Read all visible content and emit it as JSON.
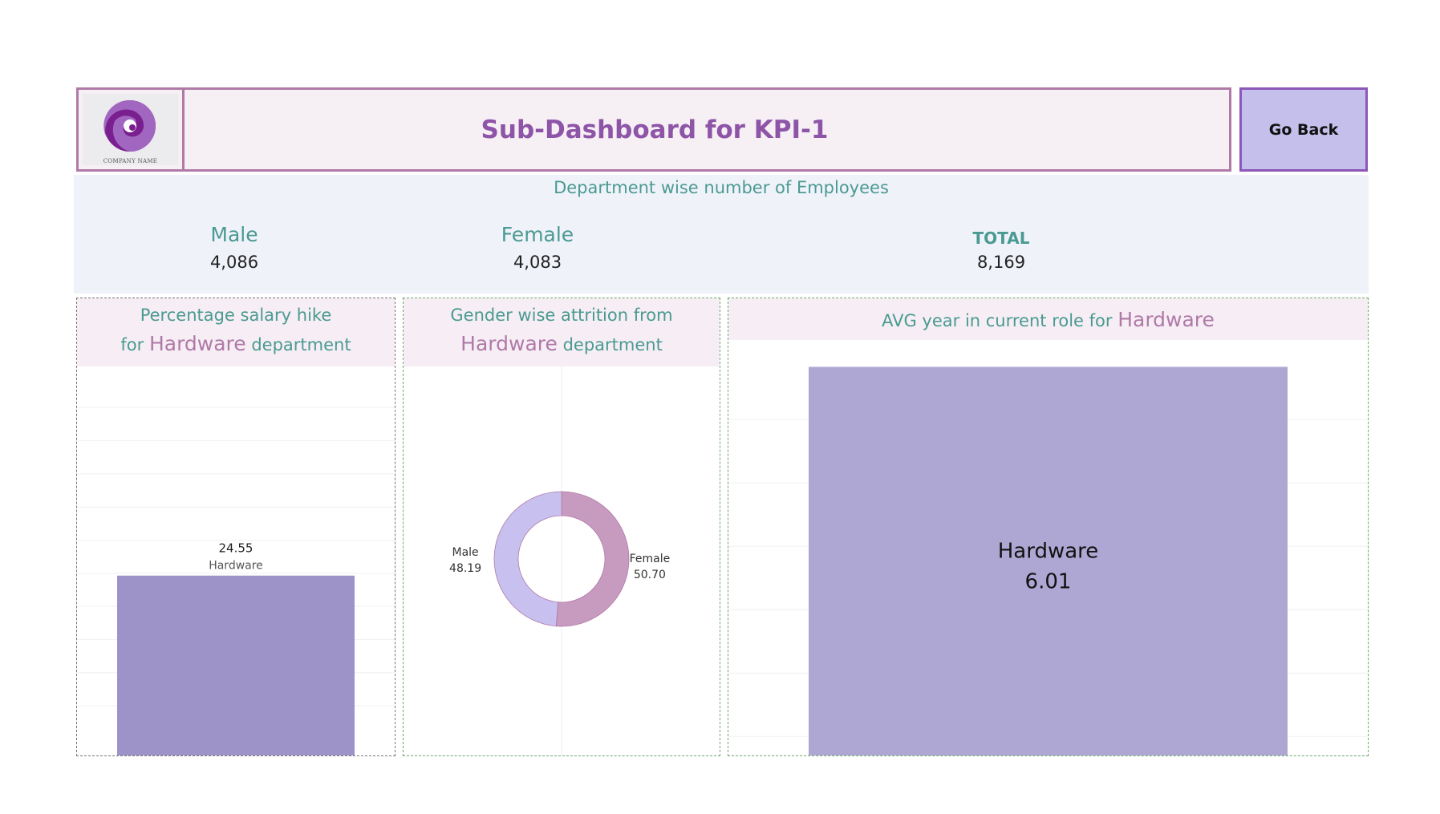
{
  "header": {
    "title": "Sub-Dashboard for KPI-1",
    "logo_caption": "COMPANY NAME",
    "go_back_label": "Go Back"
  },
  "kpi": {
    "title": "Department wise number of Employees",
    "male_label": "Male",
    "male_value": "4,086",
    "female_label": "Female",
    "female_value": "4,083",
    "total_label": "TOTAL",
    "total_value": "8,169"
  },
  "panels": {
    "salary": {
      "title_line1": "Percentage salary hike",
      "title_for": "for",
      "title_highlight": "Hardware",
      "title_end": "department"
    },
    "attrition": {
      "title_line1": "Gender wise attrition from",
      "title_highlight": "Hardware",
      "title_end": "department"
    },
    "avg_year": {
      "title_start": "AVG year in current role for",
      "title_highlight": "Hardware"
    }
  },
  "colors": {
    "bar_salary": "#9d93c8",
    "bar_avg": "#aea7d3",
    "donut_male": "#c8c0ee",
    "donut_female": "#c79ac0",
    "accent_text": "#4a9a92",
    "highlight_text": "#b07aa8"
  },
  "chart_data": [
    {
      "type": "bar",
      "categories": [
        "Hardware"
      ],
      "values": [
        24.55
      ],
      "value_labels": [
        "24.55"
      ],
      "title": "Percentage salary hike for Hardware department",
      "ylim": [
        0,
        52
      ]
    },
    {
      "type": "pie",
      "donut": true,
      "categories": [
        "Male",
        "Female"
      ],
      "values": [
        48.19,
        50.7
      ],
      "value_labels": [
        "48.19",
        "50.70"
      ],
      "title": "Gender wise attrition from Hardware department"
    },
    {
      "type": "bar",
      "categories": [
        "Hardware"
      ],
      "values": [
        6.01
      ],
      "value_labels": [
        "6.01"
      ],
      "title": "AVG year in current role for Hardware",
      "ylim": [
        0,
        6.3
      ]
    }
  ]
}
